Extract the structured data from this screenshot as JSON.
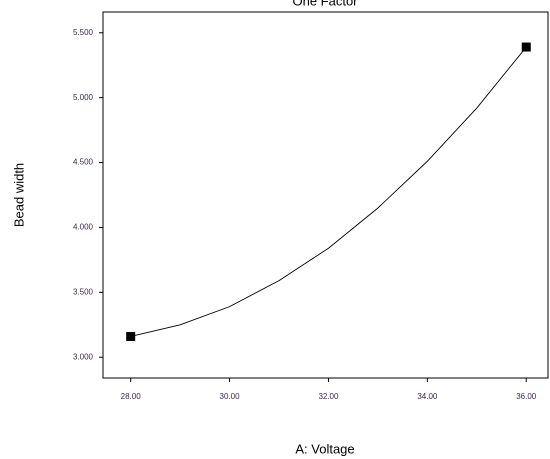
{
  "chart_data": {
    "type": "line",
    "title": "One Factor",
    "x_label": "A: Voltage",
    "y_label": "Bead width",
    "x": [
      28,
      29,
      30,
      31,
      32,
      33,
      34,
      35,
      36
    ],
    "values": [
      3.16,
      3.25,
      3.39,
      3.59,
      3.84,
      4.15,
      4.51,
      4.92,
      5.39
    ],
    "color": "#000000",
    "points": {
      "x": [
        28,
        36
      ],
      "values": [
        3.16,
        5.39
      ],
      "color": "#000000"
    },
    "xlim": [
      27.44,
      36.44
    ],
    "ylim": [
      2.84,
      5.66
    ],
    "xticks": [
      {
        "value": 28,
        "label": "28.00"
      },
      {
        "value": 30,
        "label": "30.00"
      },
      {
        "value": 32,
        "label": "32.00"
      },
      {
        "value": 34,
        "label": "34.00"
      },
      {
        "value": 36,
        "label": "36.00"
      }
    ],
    "yticks": [
      {
        "value": 3,
        "label": "3.000"
      },
      {
        "value": 3.5,
        "label": "3.500"
      },
      {
        "value": 4,
        "label": "4.000"
      },
      {
        "value": 4.5,
        "label": "4.500"
      },
      {
        "value": 5,
        "label": "5.000"
      },
      {
        "value": 5.5,
        "label": "5.500"
      }
    ],
    "grid": false
  }
}
